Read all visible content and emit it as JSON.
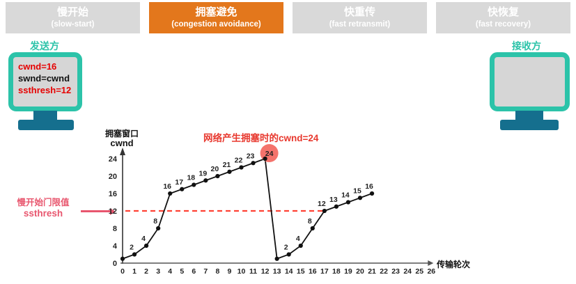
{
  "tabs": [
    {
      "title": "慢开始",
      "subtitle": "(slow-start)",
      "active": false
    },
    {
      "title": "拥塞避免",
      "subtitle": "(congestion avoidance)",
      "active": true
    },
    {
      "title": "快重传",
      "subtitle": "(fast retransmit)",
      "active": false
    },
    {
      "title": "快恢复",
      "subtitle": "(fast recovery)",
      "active": false
    }
  ],
  "sender": {
    "label": "发送方",
    "screen_lines": [
      {
        "text": "cwnd=16",
        "color": "#e60000"
      },
      {
        "text": "swnd=cwnd",
        "color": "#111111"
      },
      {
        "text": "ssthresh=12",
        "color": "#e60000"
      }
    ]
  },
  "receiver": {
    "label": "接收方"
  },
  "colors": {
    "accent_orange": "#e3771c",
    "tab_gray": "#d9d9d9",
    "teal": "#2cc3a9",
    "dark_teal": "#156f8e",
    "screen_gray": "#d6d6d6",
    "red_text": "#e60000",
    "pink": "#e8566e",
    "dashed_red": "#ff4234",
    "circle_salmon": "#f4736c"
  },
  "chart_data": {
    "type": "line",
    "title": "",
    "ylabel": "拥塞窗口",
    "ylabel2": "cwnd",
    "xlabel": "传输轮次",
    "xlim": [
      0,
      26
    ],
    "ylim": [
      0,
      24
    ],
    "x_ticks": [
      0,
      1,
      2,
      3,
      4,
      5,
      6,
      7,
      8,
      9,
      10,
      11,
      12,
      13,
      14,
      15,
      16,
      17,
      18,
      19,
      20,
      21,
      22,
      23,
      24,
      25,
      26
    ],
    "y_ticks": [
      0,
      4,
      8,
      12,
      16,
      20,
      24
    ],
    "x": [
      0,
      1,
      2,
      3,
      4,
      5,
      6,
      7,
      8,
      9,
      10,
      11,
      12,
      13,
      14,
      15,
      16,
      17,
      18,
      19,
      20,
      21
    ],
    "y": [
      1,
      2,
      4,
      8,
      16,
      17,
      18,
      19,
      20,
      21,
      22,
      23,
      24,
      1,
      2,
      4,
      8,
      12,
      13,
      14,
      15,
      16
    ],
    "point_labels": [
      "",
      "2",
      "4",
      "8",
      "16",
      "17",
      "18",
      "19",
      "20",
      "21",
      "22",
      "23",
      "",
      "",
      "2",
      "4",
      "8",
      "12",
      "13",
      "14",
      "15",
      "16"
    ],
    "threshold": {
      "value": 12,
      "x_end": 17,
      "label_line1": "慢开始门限值",
      "label_line2": "ssthresh",
      "color": "#ff4234"
    },
    "congestion_point": {
      "x": 12,
      "y": 24,
      "label": "24",
      "annotation": "网络产生拥塞时的cwnd=24"
    },
    "grid": false,
    "legend": false
  }
}
